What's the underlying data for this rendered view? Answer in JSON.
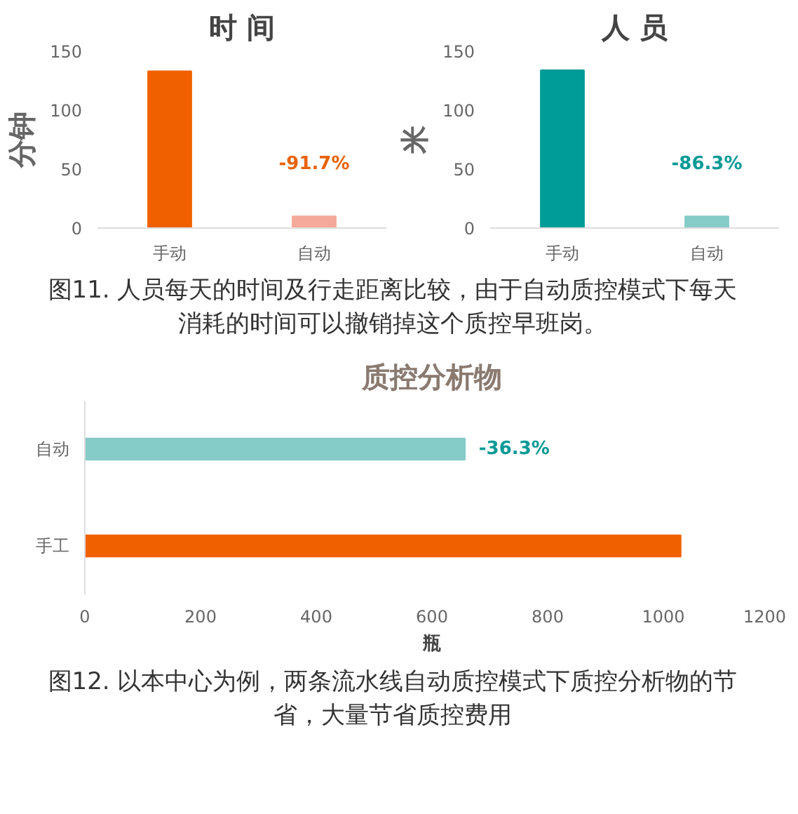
{
  "chart_data": [
    {
      "type": "bar",
      "title": "时 间",
      "ylabel": "分钟",
      "categories": [
        "手动",
        "自动"
      ],
      "values": [
        133,
        10
      ],
      "colors": [
        "#f06000",
        "#f4a99a"
      ],
      "ylim": [
        0,
        150
      ],
      "yticks": [
        0,
        50,
        100,
        150
      ],
      "grid": false,
      "annotations": [
        "-91.7%"
      ]
    },
    {
      "type": "bar",
      "title": "人 员",
      "ylabel": "米",
      "categories": [
        "手动",
        "自动"
      ],
      "values": [
        134,
        10
      ],
      "colors": [
        "#009c98",
        "#85cbc7"
      ],
      "ylim": [
        0,
        150
      ],
      "yticks": [
        0,
        50,
        100,
        150
      ],
      "grid": false,
      "annotations": [
        "-86.3%",
        "图11. 人员每天的时间及行走距离比较，由于自动质控模式下每天消耗的时间可以撤销掉这个质控早班岗。"
      ]
    },
    {
      "type": "bar",
      "orientation": "horizontal",
      "title": "质控分析物",
      "xlabel": "瓶",
      "categories": [
        "自动",
        "手工"
      ],
      "values": [
        657,
        1030
      ],
      "colors": [
        "#85cbc7",
        "#f06000"
      ],
      "xlim": [
        0,
        1200
      ],
      "xticks": [
        0,
        200,
        400,
        600,
        800,
        1000,
        1200
      ],
      "grid": false,
      "annotations": [
        "-36.3%",
        "图12. 以本中心为例，两条流水线自动质控模式下质控分析物的节省，大量节省质控费用"
      ]
    }
  ]
}
